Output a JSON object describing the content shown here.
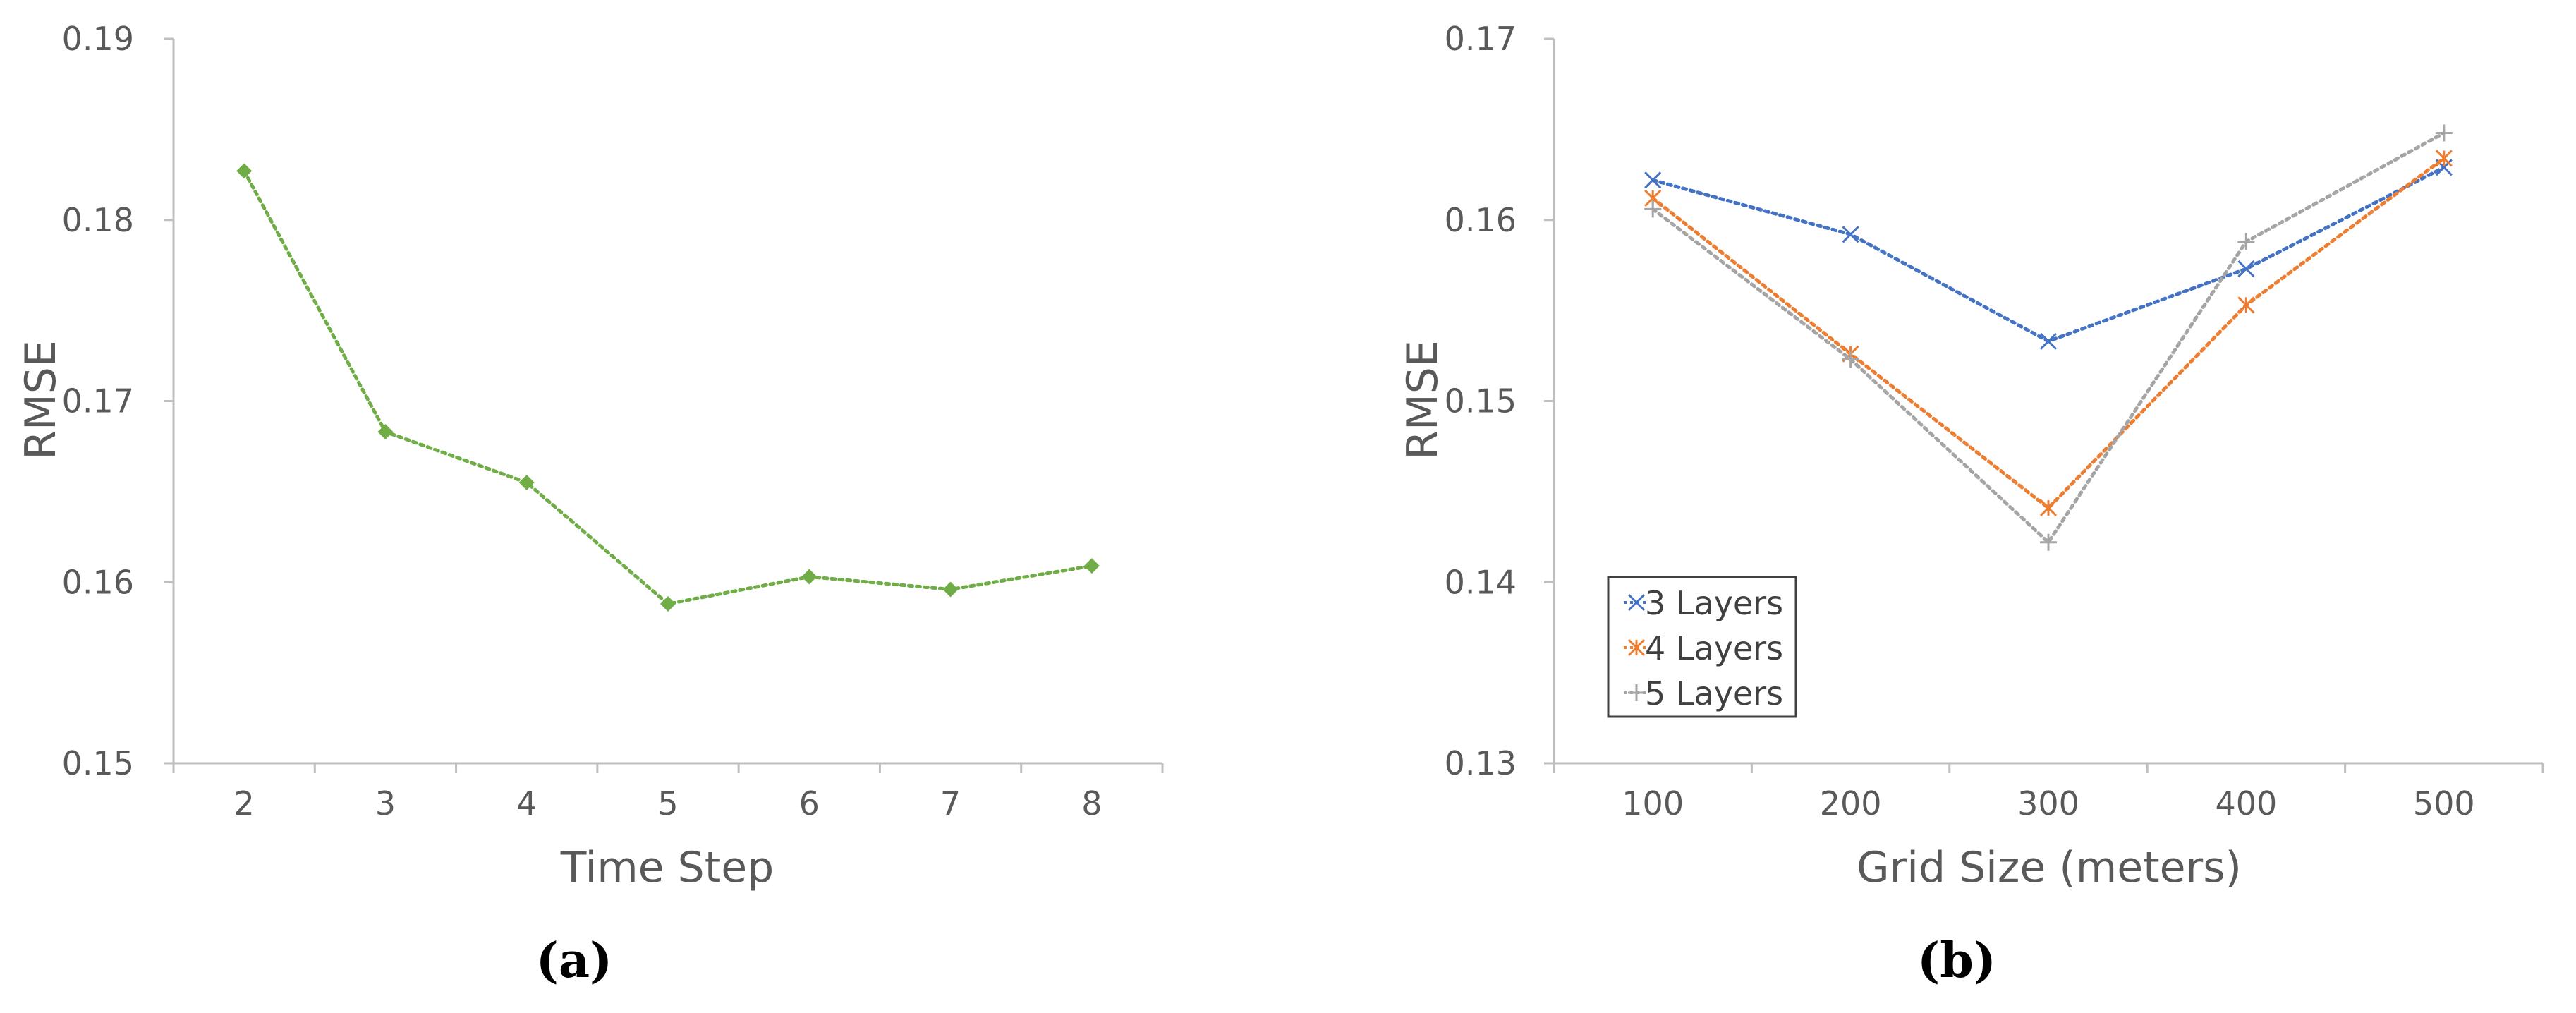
{
  "chart_data": [
    {
      "type": "line",
      "panel_label": "(a)",
      "xlabel": "Time Step",
      "ylabel": "RMSE",
      "categories": [
        "2",
        "3",
        "4",
        "5",
        "6",
        "7",
        "8"
      ],
      "ylim": [
        0.15,
        0.19
      ],
      "yticks": [
        "0.15",
        "0.16",
        "0.17",
        "0.18",
        "0.19"
      ],
      "series": [
        {
          "values": [
            0.1827,
            0.1683,
            0.1655,
            0.1588,
            0.1603,
            0.1596,
            0.1609
          ],
          "color": "#70ad47",
          "marker": "diamond"
        }
      ],
      "grid": false
    },
    {
      "type": "line",
      "panel_label": "(b)",
      "xlabel": "Grid Size (meters)",
      "ylabel": "RMSE",
      "categories": [
        "100",
        "200",
        "300",
        "400",
        "500"
      ],
      "ylim": [
        0.13,
        0.17
      ],
      "yticks": [
        "0.13",
        "0.14",
        "0.15",
        "0.16",
        "0.17"
      ],
      "legend_position": "bottom-left",
      "series": [
        {
          "name": "3 Layers",
          "values": [
            0.1622,
            0.1592,
            0.1533,
            0.1573,
            0.1629
          ],
          "color": "#4472c4",
          "marker": "x"
        },
        {
          "name": "4 Layers",
          "values": [
            0.1612,
            0.1526,
            0.1441,
            0.1553,
            0.1634
          ],
          "color": "#ed7d31",
          "marker": "star"
        },
        {
          "name": "5 Layers",
          "values": [
            0.1606,
            0.1523,
            0.1422,
            0.1588,
            0.1648
          ],
          "color": "#a5a5a5",
          "marker": "plus"
        }
      ],
      "grid": false
    }
  ]
}
